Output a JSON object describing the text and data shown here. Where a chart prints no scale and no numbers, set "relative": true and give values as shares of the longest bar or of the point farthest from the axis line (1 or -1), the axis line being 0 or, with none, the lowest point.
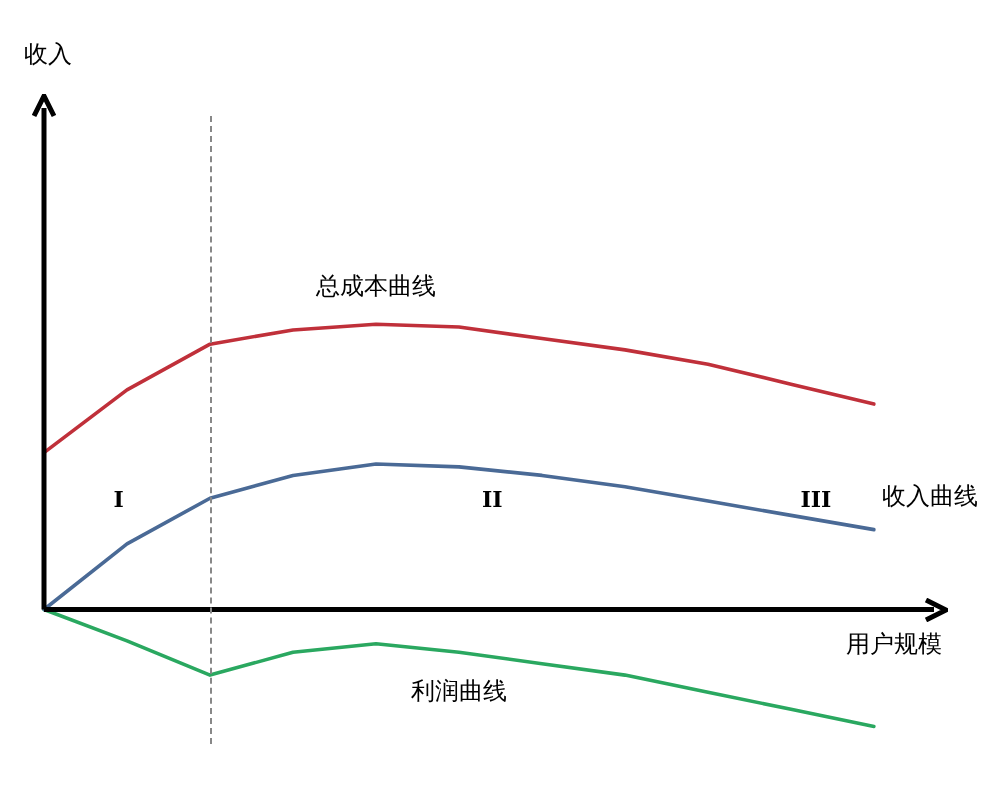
{
  "chart_data": {
    "type": "line",
    "relative": true,
    "xlabel": "用户规模",
    "categories": [
      null,
      null,
      null,
      null,
      null,
      null,
      null,
      null,
      null,
      null,
      null
    ],
    "tick_labels": false,
    "marker": "none",
    "line_style": "solid",
    "annotations": [
      "收入",
      "I",
      "II",
      "III"
    ],
    "series": [
      {
        "name": "总成本曲线",
        "color": "#c0303a",
        "values": [
          0.55,
          0.77,
          0.93,
          0.98,
          1,
          0.99,
          0.95,
          0.91,
          0.86,
          0.79,
          0.72
        ]
      },
      {
        "name": "收入曲线",
        "color": "#4a6a96",
        "values": [
          0,
          0.23,
          0.39,
          0.47,
          0.51,
          0.5,
          0.47,
          0.43,
          0.38,
          0.33,
          0.28
        ]
      },
      {
        "name": "利润曲线",
        "color": "#2aa860",
        "values": [
          0,
          -0.11,
          -0.23,
          -0.15,
          -0.12,
          -0.15,
          -0.19,
          -0.23,
          -0.29,
          -0.35,
          -0.41
        ]
      }
    ]
  }
}
